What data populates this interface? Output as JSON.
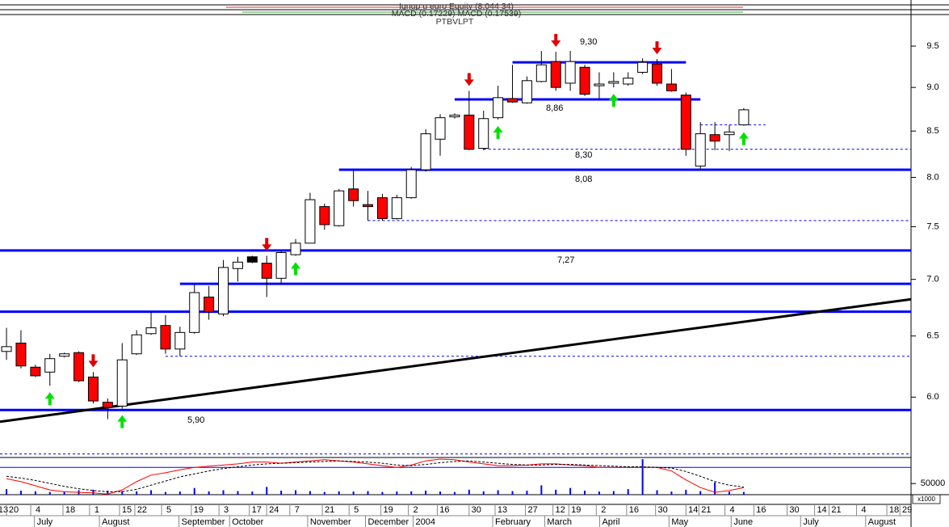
{
  "chart_data": {
    "type": "candlestick",
    "title": "Ignup u euro Equity (8.044 34)",
    "subtitle": "MACD (0.17229) MACD (0.17539)",
    "caption": "PTBVLPT",
    "log_scale": true,
    "x": [
      0,
      1,
      2,
      3,
      4,
      5,
      6,
      7,
      8,
      9,
      10,
      11,
      12,
      13,
      14,
      15,
      16,
      17,
      18,
      19,
      20,
      21,
      22,
      23,
      24,
      25,
      26,
      27,
      28,
      29,
      30,
      31,
      32,
      33,
      34,
      35,
      36,
      37,
      38,
      39,
      40,
      41,
      42,
      43,
      44,
      45,
      46,
      47,
      48,
      49,
      50,
      51
    ],
    "open": [
      6.37,
      6.44,
      6.24,
      6.2,
      6.33,
      6.36,
      6.16,
      5.96,
      5.93,
      6.35,
      6.52,
      6.59,
      6.39,
      6.53,
      6.84,
      6.69,
      7.1,
      7.21,
      7.15,
      7.01,
      7.23,
      7.34,
      7.7,
      7.51,
      7.88,
      7.72,
      7.79,
      7.58,
      7.79,
      8.08,
      8.41,
      8.66,
      8.68,
      8.31,
      8.65,
      8.87,
      8.82,
      9.07,
      9.31,
      9.05,
      9.24,
      9.02,
      9.05,
      9.04,
      9.18,
      9.28,
      9.04,
      8.91,
      8.12,
      8.46,
      8.46,
      8.57
    ],
    "high": [
      6.57,
      6.55,
      6.26,
      6.35,
      6.36,
      6.37,
      6.2,
      5.99,
      6.44,
      6.55,
      6.71,
      6.68,
      6.58,
      6.95,
      6.94,
      7.18,
      7.21,
      7.22,
      7.22,
      7.27,
      7.38,
      7.84,
      7.73,
      7.88,
      8.09,
      7.86,
      7.83,
      7.82,
      8.11,
      8.52,
      8.69,
      8.7,
      8.96,
      8.73,
      9.02,
      9.27,
      9.13,
      9.44,
      9.43,
      9.44,
      9.27,
      9.18,
      9.18,
      9.18,
      9.35,
      9.34,
      9.22,
      8.94,
      8.6,
      8.6,
      8.57,
      8.76
    ],
    "low": [
      6.3,
      6.23,
      6.16,
      6.09,
      6.32,
      6.12,
      5.95,
      5.83,
      5.91,
      6.34,
      6.51,
      6.35,
      6.33,
      6.52,
      6.64,
      6.67,
      6.98,
      7.15,
      6.84,
      6.95,
      7.22,
      7.34,
      7.47,
      7.5,
      7.7,
      7.56,
      7.56,
      7.57,
      7.78,
      8.06,
      8.23,
      8.64,
      8.29,
      8.29,
      8.63,
      8.82,
      8.81,
      9.06,
      8.96,
      8.96,
      8.9,
      8.87,
      9.0,
      9.02,
      9.16,
      9.02,
      8.95,
      8.23,
      8.07,
      8.29,
      8.28,
      8.56
    ],
    "close": [
      6.41,
      6.25,
      6.17,
      6.31,
      6.35,
      6.13,
      5.97,
      5.92,
      6.3,
      6.51,
      6.57,
      6.39,
      6.53,
      6.88,
      6.71,
      7.11,
      7.16,
      7.16,
      7.01,
      7.25,
      7.34,
      7.77,
      7.52,
      7.86,
      7.76,
      7.7,
      7.58,
      7.79,
      8.08,
      8.47,
      8.65,
      8.68,
      8.3,
      8.64,
      8.88,
      8.83,
      9.08,
      9.27,
      9.0,
      9.31,
      8.92,
      9.04,
      9.07,
      9.11,
      9.3,
      9.05,
      8.96,
      8.3,
      8.47,
      8.39,
      8.49,
      8.74
    ],
    "up_color": "#ffffff",
    "down_color": "#ff0000",
    "black_candles": [
      17
    ],
    "wick_color": "#000000",
    "xlim": [
      -0.45,
      62.57
    ],
    "ylim": [
      5.55,
      9.88
    ],
    "yticks": [
      {
        "value": 6,
        "label": "6.0"
      },
      6.5,
      {
        "value": 7,
        "label": "7.0"
      },
      7.5,
      {
        "value": 8,
        "label": "8.0"
      },
      8.5,
      {
        "value": 9,
        "label": "9.0"
      },
      9.5
    ],
    "xticks": [
      {
        "value": -0.23,
        "label": "13"
      },
      {
        "value": 0.5,
        "label": "20"
      },
      {
        "value": 2.18,
        "label": "4"
      },
      {
        "value": 4.41,
        "label": "18"
      },
      {
        "value": 6.25,
        "label": "1"
      },
      {
        "value": 8.32,
        "label": "15"
      },
      {
        "value": 9.38,
        "label": "22"
      },
      {
        "value": 11.23,
        "label": "5"
      },
      {
        "value": 13.29,
        "label": "19"
      },
      {
        "value": 15.2,
        "label": "3"
      },
      {
        "value": 17.3,
        "label": "17"
      },
      {
        "value": 18.5,
        "label": "24"
      },
      {
        "value": 20.1,
        "label": "7"
      },
      {
        "value": 22.35,
        "label": "21"
      },
      {
        "value": 24.2,
        "label": "5"
      },
      {
        "value": 26.4,
        "label": "19"
      },
      {
        "value": 28.3,
        "label": "2"
      },
      {
        "value": 30.3,
        "label": "16"
      },
      {
        "value": 32.5,
        "label": "30"
      },
      {
        "value": 34.3,
        "label": "13"
      },
      {
        "value": 36.4,
        "label": "27"
      },
      {
        "value": 38.3,
        "label": "12"
      },
      {
        "value": 39.4,
        "label": "19"
      },
      {
        "value": 41.3,
        "label": "2"
      },
      {
        "value": 43.4,
        "label": "16"
      },
      {
        "value": 45.4,
        "label": "30"
      },
      {
        "value": 47.5,
        "label": "14"
      },
      {
        "value": 48.4,
        "label": "21"
      },
      {
        "value": 50.2,
        "label": "4"
      },
      {
        "value": 52.2,
        "label": "16"
      },
      {
        "value": 54.5,
        "label": "30"
      },
      {
        "value": 56.4,
        "label": "14"
      },
      {
        "value": 57.4,
        "label": "21"
      },
      {
        "value": 59.3,
        "label": "4"
      },
      {
        "value": 61.4,
        "label": "18"
      },
      {
        "value": 62.3,
        "label": "29"
      }
    ],
    "month_ticks": [
      {
        "value": 2.6,
        "label": "July"
      },
      {
        "value": 7.1,
        "label": "August"
      },
      {
        "value": 12.6,
        "label": "September"
      },
      {
        "value": 16.1,
        "label": "October"
      },
      {
        "value": 21.5,
        "label": "November"
      },
      {
        "value": 25.5,
        "label": "December"
      },
      {
        "value": 28.8,
        "label": "2004"
      },
      {
        "value": 34.3,
        "label": "February"
      },
      {
        "value": 37.9,
        "label": "March"
      },
      {
        "value": 41.7,
        "label": "April"
      },
      {
        "value": 46.5,
        "label": "May"
      },
      {
        "value": 50.8,
        "label": "June"
      },
      {
        "value": 55.6,
        "label": "July"
      },
      {
        "value": 60.1,
        "label": "August"
      }
    ],
    "levels": [
      {
        "value": 9.3,
        "label": "9,30",
        "from": 35,
        "to": 47,
        "style": "solid"
      },
      {
        "value": 8.86,
        "label": "8,86",
        "from": 31,
        "to": 48,
        "style": "solid"
      },
      {
        "value": 8.3,
        "label": "8,30",
        "from": 33,
        "style": "dashed"
      },
      {
        "value": 8.08,
        "label": "8,08",
        "from": 23,
        "style": "solid"
      },
      {
        "value": 7.56,
        "from": 25,
        "style": "dashed"
      },
      {
        "value": 7.27,
        "label": "7,27",
        "style": "solid"
      },
      {
        "value": 6.96,
        "from": 12,
        "style": "solid"
      },
      {
        "value": 6.71,
        "style": "solid"
      },
      {
        "value": 6.33,
        "from": 11,
        "style": "dashed"
      },
      {
        "value": 5.9,
        "label": "5,90",
        "style": "solid"
      },
      {
        "value": 5.57,
        "style": "dashed"
      },
      {
        "value": 8.57,
        "from": 48,
        "to": 52.5,
        "style": "dashed"
      }
    ],
    "level_color": "#0000ff",
    "level_label_color": "#1a1a8c",
    "trendline": {
      "x": [
        -0.45,
        62.57
      ],
      "y": [
        5.81,
        6.82
      ],
      "color": "#000000"
    },
    "buy_signals": [
      3,
      8,
      20,
      34,
      42,
      51
    ],
    "sell_signals": [
      6,
      18,
      32,
      38,
      45
    ],
    "buy_color": "#00e000",
    "sell_color": "#e00000",
    "volume": {
      "values": [
        25000,
        18000,
        15000,
        12000,
        14000,
        20000,
        22000,
        18000,
        16000,
        15000,
        20000,
        12000,
        14000,
        30000,
        15000,
        20000,
        16000,
        14000,
        35000,
        18000,
        20000,
        16000,
        12000,
        15000,
        14000,
        16000,
        12000,
        14000,
        15000,
        18000,
        14000,
        12000,
        22000,
        15000,
        20000,
        16000,
        18000,
        42000,
        22000,
        30000,
        18000,
        14000,
        16000,
        25000,
        160000,
        20000,
        14000,
        22000,
        16000,
        55000,
        14000,
        12000
      ],
      "ylim": [
        0,
        160000
      ],
      "yticks": [
        50000
      ],
      "unit_label": "x1000",
      "color": "#0000ff"
    },
    "macd": {
      "ylim": [
        0,
        0.6
      ],
      "ref_line": 0.46,
      "ref_color": "#0000ff",
      "series": [
        {
          "color": "#ff0000",
          "dashed": false,
          "values": [
            0.27,
            0.22,
            0.15,
            0.08,
            0.05,
            0.04,
            0.03,
            0.01,
            0.08,
            0.22,
            0.33,
            0.37,
            0.42,
            0.46,
            0.48,
            0.5,
            0.52,
            0.55,
            0.55,
            0.53,
            0.55,
            0.57,
            0.59,
            0.57,
            0.55,
            0.52,
            0.49,
            0.46,
            0.5,
            0.57,
            0.6,
            0.59,
            0.55,
            0.52,
            0.49,
            0.49,
            0.5,
            0.52,
            0.52,
            0.5,
            0.49,
            0.46,
            0.46,
            0.46,
            0.46,
            0.46,
            0.4,
            0.25,
            0.12,
            0.04,
            0.07,
            0.12
          ]
        },
        {
          "color": "#000000",
          "dashed": true,
          "values": [
            0.31,
            0.28,
            0.24,
            0.19,
            0.14,
            0.1,
            0.07,
            0.05,
            0.05,
            0.09,
            0.16,
            0.23,
            0.3,
            0.35,
            0.4,
            0.44,
            0.47,
            0.5,
            0.52,
            0.53,
            0.54,
            0.55,
            0.56,
            0.57,
            0.56,
            0.55,
            0.53,
            0.5,
            0.49,
            0.51,
            0.54,
            0.56,
            0.57,
            0.55,
            0.53,
            0.51,
            0.5,
            0.5,
            0.51,
            0.51,
            0.5,
            0.49,
            0.48,
            0.47,
            0.47,
            0.46,
            0.45,
            0.39,
            0.31,
            0.22,
            0.16,
            0.13
          ]
        }
      ]
    }
  }
}
